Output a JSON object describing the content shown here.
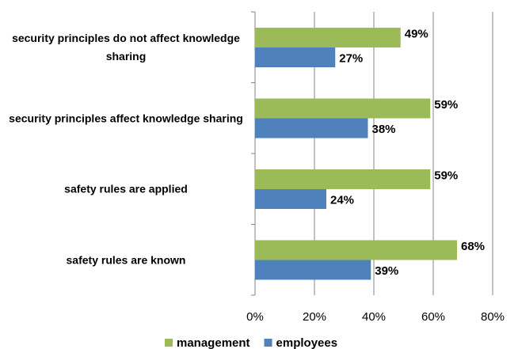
{
  "chart_data": {
    "type": "barh",
    "categories": [
      "security principles do not affect knowledge sharing",
      "security principles affect knowledge sharing",
      "safety rules are applied",
      "safety rules are known"
    ],
    "series": [
      {
        "name": "management",
        "color": "#9bbb59",
        "values": [
          49,
          59,
          59,
          68
        ],
        "value_labels": [
          "49%",
          "59%",
          "59%",
          "68%"
        ]
      },
      {
        "name": "employees",
        "color": "#4f81bd",
        "values": [
          27,
          38,
          24,
          39
        ],
        "value_labels": [
          "27%",
          "38%",
          "24%",
          "39%"
        ]
      }
    ],
    "xlim": [
      0,
      80
    ],
    "xticks": [
      {
        "value": 0,
        "label": "0%"
      },
      {
        "value": 20,
        "label": "20%"
      },
      {
        "value": 40,
        "label": "40%"
      },
      {
        "value": 60,
        "label": "60%"
      },
      {
        "value": 80,
        "label": "80%"
      }
    ],
    "grid": true,
    "legend": "bottom"
  }
}
